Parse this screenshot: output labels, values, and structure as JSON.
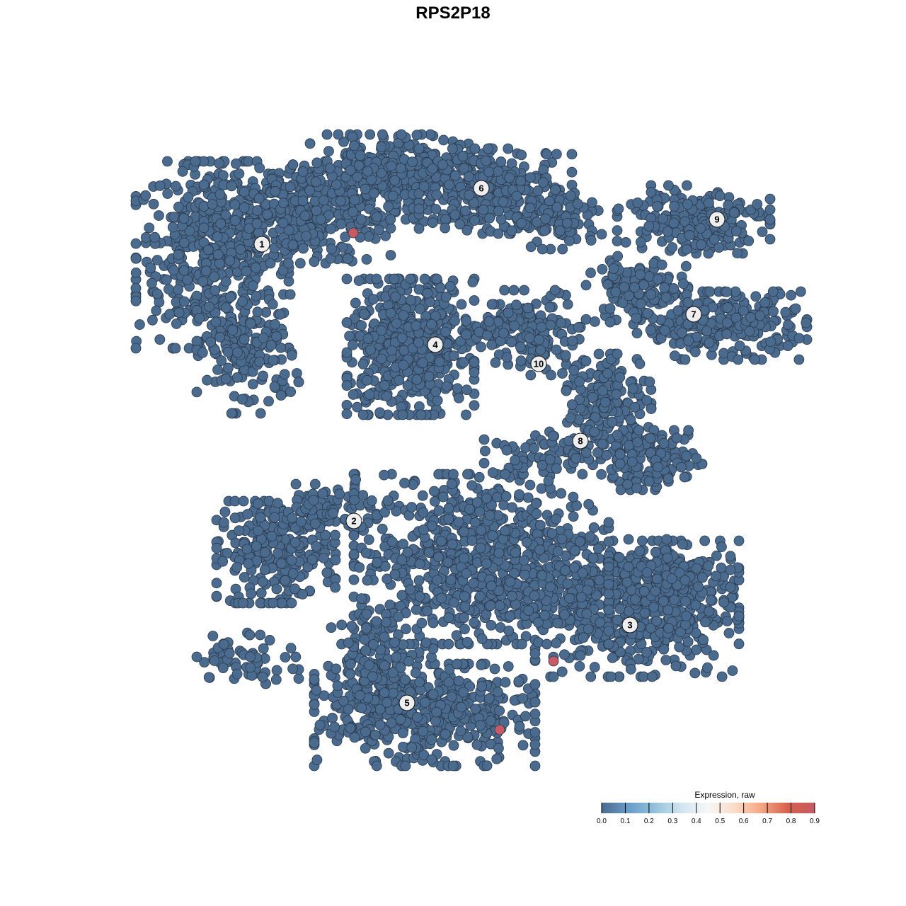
{
  "chart_data": {
    "type": "scatter",
    "title": "RPS2P18",
    "xlabel": "",
    "ylabel": "",
    "grid": false,
    "axes_visible": false,
    "point_color_low": "#4a6a8e",
    "point_color_high": "#c75a64",
    "point_outline": "#2b3a4c",
    "legend": {
      "title": "Expression, raw",
      "placement": "bottom-right",
      "range": [
        0.0,
        0.9
      ],
      "ticks": [
        "0.0",
        "0.1",
        "0.2",
        "0.3",
        "0.4",
        "0.5",
        "0.6",
        "0.7",
        "0.8",
        "0.9"
      ],
      "colors": [
        "#4a6a8e",
        "#6a9cc8",
        "#93c2dc",
        "#d1e5f0",
        "#f7f7f7",
        "#fddbc7",
        "#f4a582",
        "#d6604d",
        "#c75a64"
      ]
    },
    "clusters": [
      {
        "label": "1",
        "label_pos": [
          -27,
          29.5
        ],
        "regions": [
          [
            -34,
            28,
            9,
            11,
            450
          ],
          [
            -22,
            34,
            11,
            6,
            350
          ],
          [
            -29,
            14,
            6,
            7,
            150
          ]
        ]
      },
      {
        "label": "2",
        "label_pos": [
          -14,
          -9.6
        ],
        "regions": [
          [
            -25,
            -14,
            7,
            6,
            250
          ],
          [
            -18,
            -8,
            6,
            3,
            80
          ]
        ]
      },
      {
        "label": "3",
        "label_pos": [
          25,
          -24.3
        ],
        "regions": [
          [
            26,
            -22,
            12,
            8,
            500
          ],
          [
            32,
            -17,
            6,
            4,
            100
          ],
          [
            4,
            -15,
            15,
            10,
            800
          ]
        ]
      },
      {
        "label": "4",
        "label_pos": [
          -2.5,
          15.3
        ],
        "regions": [
          [
            -6,
            15,
            7.5,
            8,
            500
          ]
        ]
      },
      {
        "label": "5",
        "label_pos": [
          -6.5,
          -35.3
        ],
        "regions": [
          [
            -4,
            -37,
            13,
            6,
            450
          ],
          [
            -10,
            -29,
            6,
            6,
            150
          ],
          [
            -29,
            -29,
            6,
            3,
            60
          ]
        ]
      },
      {
        "label": "6",
        "label_pos": [
          4,
          37.4
        ],
        "regions": [
          [
            -8,
            39,
            11,
            5,
            400
          ],
          [
            6,
            37,
            9,
            5,
            250
          ],
          [
            15,
            33,
            5,
            3.5,
            100
          ]
        ]
      },
      {
        "label": "7",
        "label_pos": [
          34,
          19.6
        ],
        "regions": [
          [
            38,
            18,
            10,
            4,
            250
          ],
          [
            26,
            23,
            6,
            4,
            120
          ]
        ]
      },
      {
        "label": "8",
        "label_pos": [
          18,
          1.7
        ],
        "regions": [
          [
            22,
            8,
            5,
            5,
            150
          ],
          [
            28,
            -1,
            6,
            3.5,
            150
          ],
          [
            14,
            0,
            8,
            2.5,
            80
          ]
        ]
      },
      {
        "label": "9",
        "label_pos": [
          37.3,
          33
        ],
        "regions": [
          [
            34,
            33,
            9,
            4,
            200
          ]
        ]
      },
      {
        "label": "10",
        "label_pos": [
          12.1,
          12.6
        ],
        "regions": [
          [
            12,
            17,
            5,
            5,
            120
          ],
          [
            6,
            18,
            4,
            2.5,
            60
          ]
        ]
      }
    ],
    "highlighted_points": [
      {
        "x": -14.1,
        "y": 31.1,
        "value": 0.9
      },
      {
        "x": 14.2,
        "y": -29.4,
        "value": 0.9
      },
      {
        "x": 6.6,
        "y": -39.1,
        "value": 0.9
      }
    ]
  }
}
